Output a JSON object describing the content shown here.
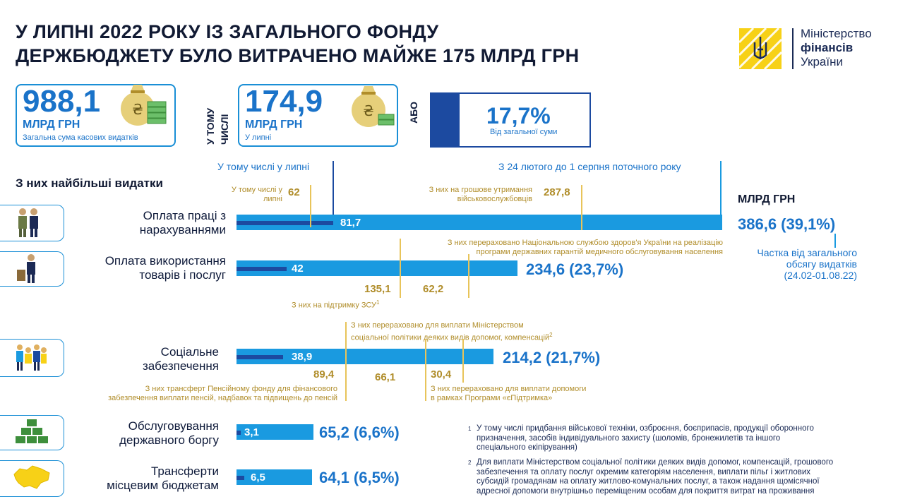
{
  "title": {
    "line1": "У ЛИПНІ  2022 РОКУ ІЗ ЗАГАЛЬНОГО ФОНДУ",
    "line2": "ДЕРЖБЮДЖЕТУ БУЛО ВИТРАЧЕНО МАЙЖЕ 175 МЛРД ГРН"
  },
  "logo": {
    "line1": "Міністерство",
    "line2": "фінансів",
    "line3": "України",
    "icon": "trident-icon"
  },
  "summary": {
    "total_value": "988,1",
    "total_unit": "МЛРД ГРН",
    "total_caption": "Загальна сума касових видатків",
    "including_label_1": "У ТОМУ",
    "including_label_2": "ЧИСЛІ",
    "july_value": "174,9",
    "july_unit": "МЛРД ГРН",
    "july_caption": "У липні",
    "or_label": "АБО",
    "share_value": "17,7%",
    "share_caption": "Від загальної суми",
    "money_icon": "money-bag-icon"
  },
  "section_title": "З них найбільші видатки",
  "legend": {
    "july": "У тому числі у липні",
    "period": "З 24 лютого до 1 серпня поточного року",
    "unit": "МЛРД ГРН",
    "share_note_1": "Частка від загального",
    "share_note_2": "обсягу видатків",
    "share_note_3": "(24.02-01.08.22)"
  },
  "colors": {
    "accent": "#1a9ae0",
    "dark_blue": "#1c4aa0",
    "gold": "#b08d2a",
    "yellow": "#f7d117"
  },
  "categories": [
    {
      "label_1": "Оплата праці з",
      "label_2": "нарахуваннями",
      "icon": "soldiers-icon",
      "july": "81,7",
      "total": "386,6 (39,1%)",
      "notes": {
        "july_sub_label_1": "У тому числі у",
        "july_sub_label_2": "липні",
        "july_sub_value": "62",
        "sub_label_1": "З них на грошове утримання",
        "sub_label_2": "військовослужбовців",
        "sub_value": "287,8"
      }
    },
    {
      "label_1": "Оплата використання",
      "label_2": "товарів і послуг",
      "icon": "goods-icon",
      "july": "42",
      "total": "234,6 (23,7%)",
      "notes": {
        "top_1": "З них перераховано Національною службою здоров'я України на реалізацію",
        "top_2": "програми державних гарантій медичного обслуговування населення",
        "v1": "135,1",
        "v2": "62,2",
        "zsu_label": "З них на підтримку ЗСУ"
      }
    },
    {
      "label_1": "Соціальне",
      "label_2": "забезпечення",
      "icon": "family-icon",
      "july": "38,9",
      "total": "214,2 (21,7%)",
      "notes": {
        "top_1": "З них перераховано для виплати Міністерством",
        "top_2": "соціальної політики деяких видів допомог, компенсацій",
        "v1": "89,4",
        "v2": "66,1",
        "v3": "30,4",
        "left_1": "З них трансферт Пенсійному фонду для фінансового",
        "left_2": "забезпечення виплати пенсій, надбавок та підвищень до пенсій",
        "right_1": "З них перераховано для виплати допомоги",
        "right_2": "в рамках Програми «єПідтримка»"
      }
    },
    {
      "label_1": "Обслуговування",
      "label_2": "державного боргу",
      "icon": "coin-stacks-icon",
      "july": "3,1",
      "total": "65,2 (6,6%)"
    },
    {
      "label_1": "Трансферти",
      "label_2": "місцевим бюджетам",
      "icon": "ukraine-map-icon",
      "july": "6,5",
      "total": "64,1 (6,5%)"
    }
  ],
  "footnotes": {
    "n1_mark": "1",
    "n1_1": "У тому числі придбання військової техніки, озброєння, боєприпасів, продукції оборонного",
    "n1_2": "призначення, засобів індивідуального захисту (шоломів, бронежилетів та іншого",
    "n1_3": "спеціального екіпірування)",
    "n2_mark": "2",
    "n2_1": "Для виплати Міністерством соціальної політики деяких видів допомог, компенсацій, грошового",
    "n2_2": "забезпечення та оплату послуг окремим категоріям населення, виплати пільг і житлових",
    "n2_3": "субсидій громадянам на оплату житлово-комунальних послуг, а також надання щомісячної",
    "n2_4": "адресної допомоги внутрішньо переміщеним особам для покриття витрат на проживання"
  }
}
